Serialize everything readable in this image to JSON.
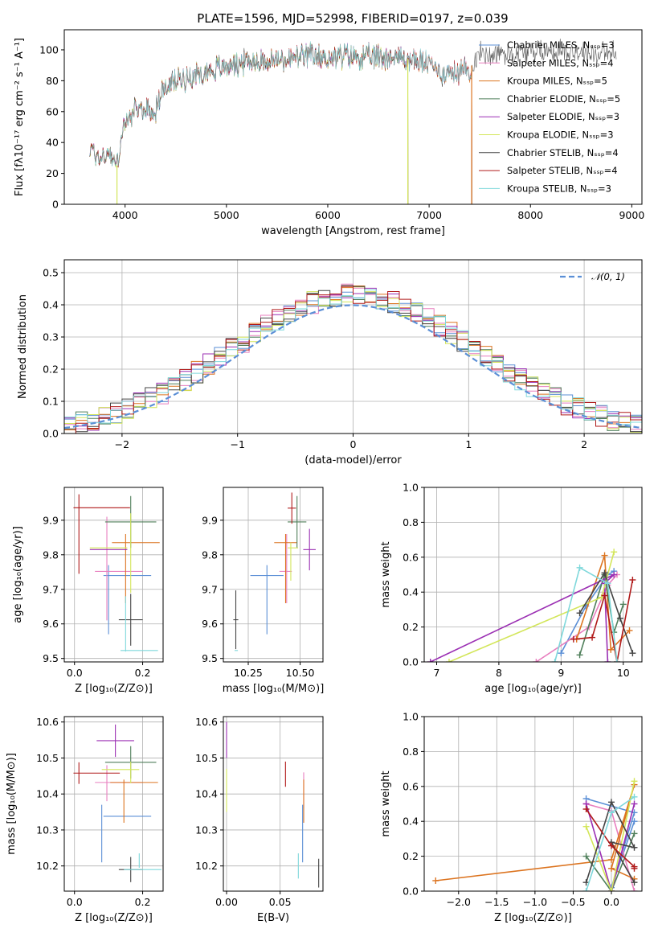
{
  "title": "PLATE=1596, MJD=52998, FIBERID=0197, z=0.039",
  "colors": {
    "Chabrier MILES": "#5b8fd6",
    "Salpeter MILES": "#e87fbf",
    "Kroupa MILES": "#dc7420",
    "Chabrier ELODIE": "#4f7f5a",
    "Salpeter ELODIE": "#9b2fb3",
    "Kroupa ELODIE": "#d3e65a",
    "Chabrier STELIB": "#444444",
    "Salpeter STELIB": "#b01a1a",
    "Kroupa STELIB": "#7fd8db",
    "gauss": "#5b8fd6"
  },
  "chart_data": [
    {
      "id": "spectrum",
      "type": "line",
      "title": "PLATE=1596, MJD=52998, FIBERID=0197, z=0.039",
      "xlabel": "wavelength [Angstrom, rest frame]",
      "ylabel": "Flux [fλ10⁻¹⁷ erg cm⁻² s⁻¹ A⁻¹]",
      "xlim": [
        3400,
        9100
      ],
      "ylim": [
        0,
        113
      ],
      "xticks": [
        4000,
        5000,
        6000,
        7000,
        8000,
        9000
      ],
      "yticks": [
        0,
        20,
        40,
        60,
        80,
        100
      ],
      "legend_position": "upper-right",
      "legend": [
        "Chabrier MILES, Nₛₛₚ=3",
        "Salpeter MILES, Nₛₛₚ=4",
        "Kroupa MILES, Nₛₛₚ=5",
        "Chabrier ELODIE, Nₛₛₚ=5",
        "Salpeter ELODIE, Nₛₛₚ=3",
        "Kroupa ELODIE, Nₛₛₚ=3",
        "Chabrier STELIB, Nₛₛₚ=4",
        "Salpeter STELIB, Nₛₛₚ=4",
        "Kroupa STELIB, Nₛₛₚ=3"
      ],
      "continuum": {
        "x": [
          3650,
          3750,
          3850,
          3920,
          3960,
          4000,
          4050,
          4150,
          4300,
          4350,
          4500,
          4700,
          4900,
          5100,
          5300,
          5500,
          5800,
          6000,
          6200,
          6400,
          6600,
          6800,
          7000,
          7100,
          7200,
          7300,
          7400,
          7500,
          7800,
          8000,
          8300,
          8600,
          8850
        ],
        "y": [
          36,
          30,
          33,
          25,
          42,
          52,
          57,
          62,
          60,
          72,
          80,
          84,
          88,
          91,
          93,
          93,
          96,
          95,
          96,
          95,
          96,
          94,
          91,
          86,
          84,
          86,
          88,
          97,
          98,
          99,
          100,
          98,
          97
        ]
      },
      "series_end_x": {
        "Chabrier MILES": 7420,
        "Salpeter MILES": 7420,
        "Kroupa MILES": 7420,
        "Chabrier ELODIE": 6790,
        "Salpeter ELODIE": 6790,
        "Kroupa ELODIE": 6790,
        "Chabrier STELIB": 8850,
        "Salpeter STELIB": 7420,
        "Kroupa STELIB": 7420
      },
      "dips": [
        {
          "x": 3920,
          "series": "Kroupa ELODIE"
        },
        {
          "x": 6790,
          "series": "Kroupa ELODIE"
        },
        {
          "x": 7420,
          "series": "Kroupa MILES"
        }
      ]
    },
    {
      "id": "residuals",
      "type": "histogram",
      "xlabel": "(data-model)/error",
      "ylabel": "Normed distribution",
      "xlim": [
        -2.5,
        2.5
      ],
      "ylim": [
        0,
        0.54
      ],
      "xticks": [
        -2,
        -1,
        0,
        1,
        2
      ],
      "yticks": [
        0.0,
        0.1,
        0.2,
        0.3,
        0.4,
        0.5
      ],
      "bin_width": 0.1,
      "legend_position": "upper-right",
      "legend": [
        "𝒩(0, 1)"
      ],
      "series_order": [
        "Chabrier MILES",
        "Salpeter MILES",
        "Kroupa MILES",
        "Chabrier ELODIE",
        "Salpeter ELODIE",
        "Kroupa ELODIE",
        "Chabrier STELIB",
        "Salpeter STELIB",
        "Kroupa STELIB"
      ]
    },
    {
      "id": "age-z",
      "type": "scatter",
      "xlabel": "Z [log₁₀(Z/Z⊙)]",
      "ylabel": "age  [log₁₀(age/yr)]",
      "xlim": [
        -0.03,
        0.26
      ],
      "ylim": [
        9.49,
        9.995
      ],
      "xticks": [
        0.0,
        0.2
      ],
      "yticks": [
        9.5,
        9.6,
        9.7,
        9.8,
        9.9
      ],
      "points": [
        {
          "series": "Chabrier MILES",
          "x": 0.1,
          "y": 9.67,
          "xerr": 0.0,
          "yerr": 0.1
        },
        {
          "series": "Chabrier MILES",
          "x": 0.155,
          "y": 9.74,
          "xerr": 0.07,
          "yerr": 0.0
        },
        {
          "series": "Salpeter MILES",
          "x": 0.13,
          "y": 9.752,
          "xerr": 0.07,
          "yerr": 0.0
        },
        {
          "series": "Salpeter MILES",
          "x": 0.095,
          "y": 9.76,
          "xerr": 0.0,
          "yerr": 0.15
        },
        {
          "series": "Kroupa MILES",
          "x": 0.15,
          "y": 9.76,
          "xerr": 0.0,
          "yerr": 0.1
        },
        {
          "series": "Kroupa MILES",
          "x": 0.18,
          "y": 9.835,
          "xerr": 0.07,
          "yerr": 0.0
        },
        {
          "series": "Chabrier ELODIE",
          "x": 0.165,
          "y": 9.895,
          "xerr": 0.075,
          "yerr": 0.075
        },
        {
          "series": "Salpeter ELODIE",
          "x": 0.1,
          "y": 9.815,
          "xerr": 0.055,
          "yerr": 0.0
        },
        {
          "series": "Kroupa ELODIE",
          "x": 0.1,
          "y": 9.82,
          "xerr": 0.055,
          "yerr": 0.0
        },
        {
          "series": "Kroupa ELODIE",
          "x": 0.165,
          "y": 9.805,
          "xerr": 0.0,
          "yerr": 0.115
        },
        {
          "series": "Chabrier STELIB",
          "x": 0.165,
          "y": 9.612,
          "xerr": 0.035,
          "yerr": 0.075
        },
        {
          "series": "Salpeter STELIB",
          "x": 0.0,
          "y": 9.935,
          "xerr": 0.0,
          "yerr": 0.0
        },
        {
          "series": "Salpeter STELIB",
          "x": 0.08,
          "y": 9.936,
          "xerr": 0.083,
          "yerr": 0.0
        },
        {
          "series": "Salpeter STELIB",
          "x": 0.013,
          "y": 9.86,
          "xerr": 0.0,
          "yerr": 0.115
        },
        {
          "series": "Kroupa STELIB",
          "x": 0.19,
          "y": 9.523,
          "xerr": 0.055,
          "yerr": 0.0
        },
        {
          "series": "Kroupa STELIB",
          "x": 0.15,
          "y": 9.6,
          "xerr": 0.0,
          "yerr": 0.08
        }
      ]
    },
    {
      "id": "age-mass",
      "type": "scatter",
      "xlabel": "mass [log₁₀(M/M⊙)]",
      "ylabel": "",
      "xlim": [
        10.13,
        10.61
      ],
      "ylim": [
        9.49,
        9.995
      ],
      "xticks": [
        10.25,
        10.5
      ],
      "yticks": [
        9.5,
        9.6,
        9.7,
        9.8,
        9.9
      ],
      "points": [
        {
          "series": "Chabrier MILES",
          "x": 10.34,
          "y": 9.74,
          "xerr": 0.08,
          "yerr": 0.0
        },
        {
          "series": "Chabrier MILES",
          "x": 10.34,
          "y": 9.67,
          "xerr": 0.0,
          "yerr": 0.1
        },
        {
          "series": "Salpeter MILES",
          "x": 10.43,
          "y": 9.752,
          "xerr": 0.03,
          "yerr": 0.0
        },
        {
          "series": "Salpeter MILES",
          "x": 10.435,
          "y": 9.76,
          "xerr": 0.0,
          "yerr": 0.1
        },
        {
          "series": "Kroupa MILES",
          "x": 10.43,
          "y": 9.835,
          "xerr": 0.055,
          "yerr": 0.0
        },
        {
          "series": "Kroupa MILES",
          "x": 10.43,
          "y": 9.76,
          "xerr": 0.0,
          "yerr": 0.1
        },
        {
          "series": "Chabrier ELODIE",
          "x": 10.485,
          "y": 9.895,
          "xerr": 0.045,
          "yerr": 0.075
        },
        {
          "series": "Salpeter ELODIE",
          "x": 10.545,
          "y": 9.815,
          "xerr": 0.03,
          "yerr": 0.06
        },
        {
          "series": "Kroupa ELODIE",
          "x": 10.465,
          "y": 9.82,
          "xerr": 0.025,
          "yerr": 0.0
        },
        {
          "series": "Kroupa ELODIE",
          "x": 10.455,
          "y": 9.78,
          "xerr": 0.0,
          "yerr": 0.055
        },
        {
          "series": "Chabrier STELIB",
          "x": 10.19,
          "y": 9.612,
          "xerr": 0.012,
          "yerr": 0.085
        },
        {
          "series": "Salpeter STELIB",
          "x": 10.46,
          "y": 9.935,
          "xerr": 0.02,
          "yerr": 0.045
        },
        {
          "series": "Kroupa STELIB",
          "x": 10.192,
          "y": 9.523,
          "xerr": 0.008,
          "yerr": 0.0
        }
      ]
    },
    {
      "id": "weight-age",
      "type": "line",
      "xlabel": "age  [log₁₀(age/yr)]",
      "ylabel": "mass weight",
      "xlim": [
        6.8,
        10.3
      ],
      "ylim": [
        0,
        1.0
      ],
      "xticks": [
        7,
        8,
        9,
        10
      ],
      "yticks": [
        0.0,
        0.2,
        0.4,
        0.6,
        0.8,
        1.0
      ],
      "series": [
        {
          "name": "Chabrier MILES",
          "x": [
            9.0,
            9.4,
            9.75,
            9.85
          ],
          "y": [
            0.05,
            0.32,
            0.5,
            0.52
          ]
        },
        {
          "name": "Salpeter MILES",
          "x": [
            8.6,
            9.45,
            9.75,
            9.9
          ],
          "y": [
            0.0,
            0.2,
            0.44,
            0.5
          ]
        },
        {
          "name": "Kroupa MILES",
          "x": [
            9.25,
            9.7,
            9.8,
            10.1
          ],
          "y": [
            0.13,
            0.61,
            0.07,
            0.18
          ]
        },
        {
          "name": "Chabrier ELODIE",
          "x": [
            9.3,
            9.7,
            9.85,
            10.0
          ],
          "y": [
            0.04,
            0.5,
            0.17,
            0.33
          ]
        },
        {
          "name": "Salpeter ELODIE",
          "x": [
            6.9,
            9.85,
            9.7,
            9.75
          ],
          "y": [
            0.0,
            0.5,
            0.45,
            0.0
          ]
        },
        {
          "name": "Kroupa ELODIE",
          "x": [
            7.2,
            9.65,
            9.85
          ],
          "y": [
            0.0,
            0.37,
            0.63
          ]
        },
        {
          "name": "Chabrier STELIB",
          "x": [
            9.3,
            9.7,
            9.95,
            10.15
          ],
          "y": [
            0.28,
            0.51,
            0.25,
            0.05
          ]
        },
        {
          "name": "Salpeter STELIB",
          "x": [
            9.2,
            9.5,
            9.7,
            9.9,
            10.15
          ],
          "y": [
            0.13,
            0.14,
            0.38,
            0.0,
            0.47
          ]
        },
        {
          "name": "Kroupa STELIB",
          "x": [
            8.9,
            9.3,
            9.75,
            9.9
          ],
          "y": [
            0.0,
            0.54,
            0.45,
            0.0
          ]
        }
      ]
    },
    {
      "id": "mass-z",
      "type": "scatter",
      "xlabel": "Z [log₁₀(Z/Z⊙)]",
      "ylabel": "mass [log₁₀(M/M⊙)]",
      "xlim": [
        -0.03,
        0.26
      ],
      "ylim": [
        10.13,
        10.615
      ],
      "xticks": [
        0.0,
        0.2
      ],
      "yticks": [
        10.2,
        10.3,
        10.4,
        10.5,
        10.6
      ],
      "points": [
        {
          "series": "Chabrier MILES",
          "x": 0.155,
          "y": 10.338,
          "xerr": 0.07,
          "yerr": 0.0
        },
        {
          "series": "Chabrier MILES",
          "x": 0.08,
          "y": 10.29,
          "xerr": 0.0,
          "yerr": 0.08
        },
        {
          "series": "Salpeter MILES",
          "x": 0.13,
          "y": 10.432,
          "xerr": 0.07,
          "yerr": 0.0
        },
        {
          "series": "Salpeter MILES",
          "x": 0.095,
          "y": 10.43,
          "xerr": 0.0,
          "yerr": 0.05
        },
        {
          "series": "Kroupa MILES",
          "x": 0.175,
          "y": 10.432,
          "xerr": 0.07,
          "yerr": 0.0
        },
        {
          "series": "Kroupa MILES",
          "x": 0.145,
          "y": 10.38,
          "xerr": 0.0,
          "yerr": 0.06
        },
        {
          "series": "Chabrier ELODIE",
          "x": 0.165,
          "y": 10.488,
          "xerr": 0.075,
          "yerr": 0.045
        },
        {
          "series": "Salpeter ELODIE",
          "x": 0.12,
          "y": 10.548,
          "xerr": 0.055,
          "yerr": 0.045
        },
        {
          "series": "Kroupa ELODIE",
          "x": 0.135,
          "y": 10.468,
          "xerr": 0.055,
          "yerr": 0.0
        },
        {
          "series": "Kroupa ELODIE",
          "x": 0.165,
          "y": 10.46,
          "xerr": 0.0,
          "yerr": 0.03
        },
        {
          "series": "Chabrier STELIB",
          "x": 0.165,
          "y": 10.19,
          "xerr": 0.035,
          "yerr": 0.035
        },
        {
          "series": "Salpeter STELIB",
          "x": 0.0,
          "y": 10.458,
          "xerr": 0.0,
          "yerr": 0.0
        },
        {
          "series": "Salpeter STELIB",
          "x": 0.065,
          "y": 10.458,
          "xerr": 0.068,
          "yerr": 0.0
        },
        {
          "series": "Salpeter STELIB",
          "x": 0.013,
          "y": 10.458,
          "xerr": 0.0,
          "yerr": 0.03
        },
        {
          "series": "Kroupa STELIB",
          "x": 0.2,
          "y": 10.19,
          "xerr": 0.055,
          "yerr": 0.0
        },
        {
          "series": "Kroupa STELIB",
          "x": 0.19,
          "y": 10.215,
          "xerr": 0.0,
          "yerr": 0.02
        }
      ]
    },
    {
      "id": "mass-ebv",
      "type": "scatter",
      "xlabel": "E(B-V)",
      "ylabel": "",
      "xlim": [
        -0.003,
        0.09
      ],
      "ylim": [
        10.13,
        10.615
      ],
      "xticks": [
        0.0,
        0.05
      ],
      "yticks": [
        10.2,
        10.3,
        10.4,
        10.5,
        10.6
      ],
      "points": [
        {
          "series": "Salpeter ELODIE",
          "x": 0.0,
          "y": 10.55,
          "xerr": 0.0,
          "yerr": 0.05
        },
        {
          "series": "Kroupa ELODIE",
          "x": 0.0,
          "y": 10.41,
          "xerr": 0.0,
          "yerr": 0.06
        },
        {
          "series": "Salpeter STELIB",
          "x": 0.055,
          "y": 10.455,
          "xerr": 0.0,
          "yerr": 0.035
        },
        {
          "series": "Salpeter MILES",
          "x": 0.072,
          "y": 10.41,
          "xerr": 0.0,
          "yerr": 0.05
        },
        {
          "series": "Kroupa MILES",
          "x": 0.072,
          "y": 10.38,
          "xerr": 0.0,
          "yerr": 0.06
        },
        {
          "series": "Chabrier MILES",
          "x": 0.071,
          "y": 10.29,
          "xerr": 0.0,
          "yerr": 0.08
        },
        {
          "series": "Kroupa STELIB",
          "x": 0.067,
          "y": 10.2,
          "xerr": 0.0,
          "yerr": 0.035
        },
        {
          "series": "Chabrier STELIB",
          "x": 0.086,
          "y": 10.18,
          "xerr": 0.0,
          "yerr": 0.04
        }
      ]
    },
    {
      "id": "weight-z",
      "type": "line",
      "xlabel": "Z [log₁₀(Z/Z⊙)]",
      "ylabel": "mass weight",
      "xlim": [
        -2.45,
        0.4
      ],
      "ylim": [
        0,
        1.0
      ],
      "xticks": [
        -2.0,
        -1.5,
        -1.0,
        -0.5,
        0.0
      ],
      "yticks": [
        0.0,
        0.2,
        0.4,
        0.6,
        0.8,
        1.0
      ],
      "series": [
        {
          "name": "Chabrier MILES",
          "x": [
            -0.33,
            0.3,
            0.0,
            0.3
          ],
          "y": [
            0.53,
            0.45,
            0.02,
            0.4
          ]
        },
        {
          "name": "Salpeter MILES",
          "x": [
            -0.33,
            0.0,
            0.3
          ],
          "y": [
            0.5,
            0.46,
            0.0
          ]
        },
        {
          "name": "Kroupa MILES",
          "x": [
            -2.3,
            0.0,
            0.3,
            0.0,
            0.3
          ],
          "y": [
            0.06,
            0.18,
            0.61,
            0.13,
            0.07
          ]
        },
        {
          "name": "Chabrier ELODIE",
          "x": [
            -0.33,
            0.0,
            0.3
          ],
          "y": [
            0.2,
            0.0,
            0.33
          ]
        },
        {
          "name": "Salpeter ELODIE",
          "x": [
            -0.33,
            0.0,
            0.3
          ],
          "y": [
            0.5,
            0.0,
            0.5
          ]
        },
        {
          "name": "Kroupa ELODIE",
          "x": [
            -0.33,
            0.0,
            0.3
          ],
          "y": [
            0.37,
            0.0,
            0.63
          ]
        },
        {
          "name": "Chabrier STELIB",
          "x": [
            -0.33,
            0.0,
            0.3,
            0.0,
            0.3
          ],
          "y": [
            0.05,
            0.51,
            0.25,
            0.28,
            0.05
          ]
        },
        {
          "name": "Salpeter STELIB",
          "x": [
            -0.33,
            0.0,
            0.3,
            0.3
          ],
          "y": [
            0.47,
            0.26,
            0.14,
            0.13
          ]
        },
        {
          "name": "Kroupa STELIB",
          "x": [
            -0.33,
            0.0,
            0.3
          ],
          "y": [
            0.0,
            0.45,
            0.54
          ]
        }
      ]
    }
  ]
}
